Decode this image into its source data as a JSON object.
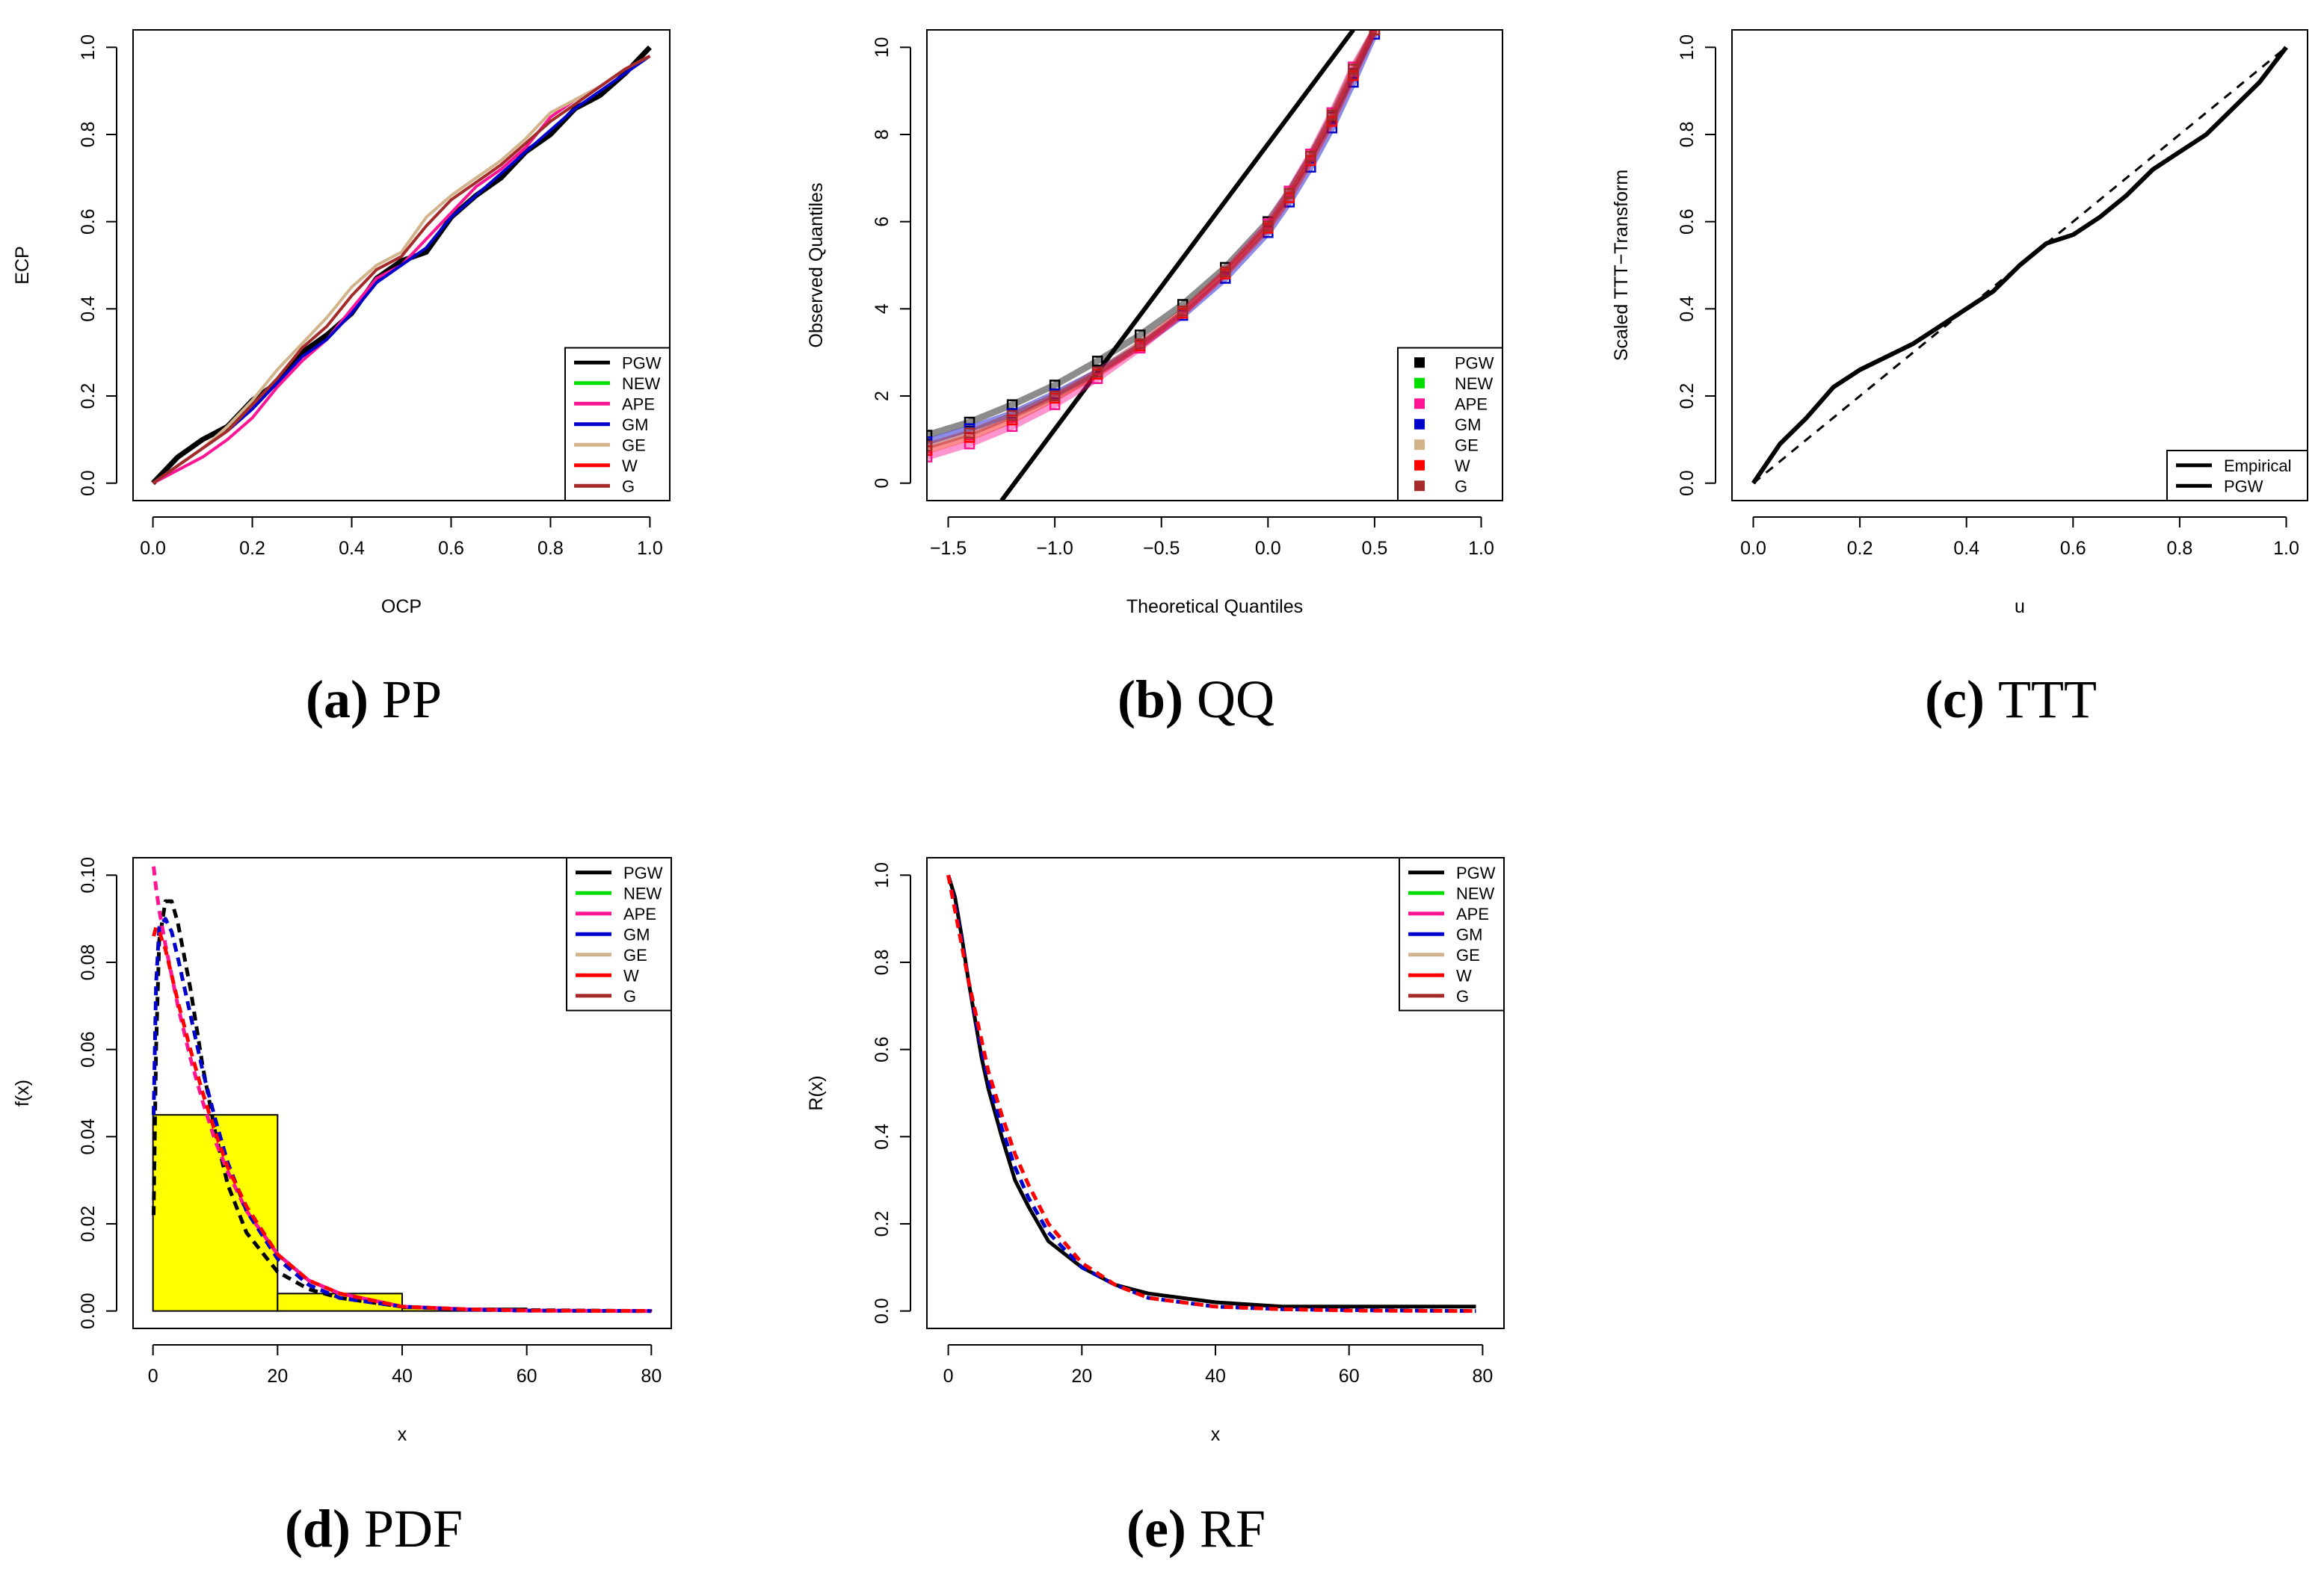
{
  "colors": {
    "PGW": "#000000",
    "NEW": "#00dd00",
    "APE": "#ff1493",
    "GM": "#0000cd",
    "GE": "#d2b48c",
    "W": "#ff0000",
    "G": "#a52a2a",
    "histogram_fill": "#ffff00"
  },
  "chart_data": [
    {
      "id": "pp",
      "type": "line",
      "caption": {
        "letter": "(a)",
        "text": "PP"
      },
      "xlabel": "OCP",
      "ylabel": "ECP",
      "xlim": [
        0,
        1
      ],
      "ylim": [
        0,
        1
      ],
      "xticks": [
        "0.0",
        "0.2",
        "0.4",
        "0.6",
        "0.8",
        "1.0"
      ],
      "yticks": [
        "0.0",
        "0.2",
        "0.4",
        "0.6",
        "0.8",
        "1.0"
      ],
      "legend": {
        "position": "bottom-right",
        "entries": [
          "PGW",
          "NEW",
          "APE",
          "GM",
          "GE",
          "W",
          "G"
        ],
        "style": "line"
      },
      "x": [
        0.0,
        0.05,
        0.1,
        0.15,
        0.2,
        0.25,
        0.3,
        0.35,
        0.4,
        0.45,
        0.5,
        0.55,
        0.6,
        0.65,
        0.7,
        0.75,
        0.8,
        0.85,
        0.9,
        0.95,
        1.0
      ],
      "series": [
        {
          "name": "PGW",
          "values": [
            0.0,
            0.06,
            0.1,
            0.13,
            0.19,
            0.23,
            0.3,
            0.34,
            0.39,
            0.47,
            0.51,
            0.53,
            0.61,
            0.66,
            0.7,
            0.76,
            0.8,
            0.86,
            0.89,
            0.94,
            1.0
          ]
        },
        {
          "name": "APE",
          "values": [
            0.0,
            0.03,
            0.06,
            0.1,
            0.15,
            0.22,
            0.28,
            0.33,
            0.4,
            0.47,
            0.5,
            0.56,
            0.62,
            0.68,
            0.72,
            0.77,
            0.84,
            0.88,
            0.91,
            0.95,
            0.98
          ]
        },
        {
          "name": "GM",
          "values": [
            0.0,
            0.04,
            0.08,
            0.12,
            0.17,
            0.23,
            0.29,
            0.33,
            0.39,
            0.46,
            0.5,
            0.54,
            0.61,
            0.66,
            0.71,
            0.76,
            0.81,
            0.86,
            0.9,
            0.94,
            0.98
          ]
        },
        {
          "name": "GE",
          "values": [
            0.0,
            0.04,
            0.08,
            0.13,
            0.19,
            0.26,
            0.32,
            0.38,
            0.45,
            0.5,
            0.53,
            0.61,
            0.66,
            0.7,
            0.74,
            0.79,
            0.85,
            0.88,
            0.91,
            0.95,
            0.98
          ]
        },
        {
          "name": "G",
          "values": [
            0.0,
            0.04,
            0.08,
            0.12,
            0.18,
            0.24,
            0.31,
            0.36,
            0.43,
            0.49,
            0.52,
            0.59,
            0.65,
            0.69,
            0.73,
            0.78,
            0.83,
            0.87,
            0.91,
            0.95,
            0.98
          ]
        }
      ]
    },
    {
      "id": "qq",
      "type": "scatter",
      "caption": {
        "letter": "(b)",
        "text": "QQ"
      },
      "xlabel": "Theoretical Quantiles",
      "ylabel": "Observed Quantiles",
      "xlim": [
        -1.6,
        1.1
      ],
      "ylim": [
        -0.4,
        10.4
      ],
      "xticks": [
        -1.5,
        -1.0,
        -0.5,
        0.0,
        0.5,
        1.0
      ],
      "xtick_labels": [
        "−1.5",
        "−1.0",
        "−0.5",
        "0.0",
        "0.5",
        "1.0"
      ],
      "yticks": [
        0,
        2,
        4,
        6,
        8,
        10
      ],
      "ytick_labels": [
        "0",
        "2",
        "4",
        "6",
        "8",
        "10"
      ],
      "legend": {
        "position": "bottom-right",
        "entries": [
          "PGW",
          "NEW",
          "APE",
          "GM",
          "GE",
          "W",
          "G"
        ],
        "style": "square"
      },
      "reference_line": {
        "x": [
          -1.25,
          0.4
        ],
        "y": [
          -0.4,
          10.4
        ]
      },
      "x": [
        -1.6,
        -1.4,
        -1.2,
        -1.0,
        -0.8,
        -0.6,
        -0.4,
        -0.2,
        0.0,
        0.1,
        0.2,
        0.3,
        0.4,
        0.5
      ],
      "series": [
        {
          "name": "PGW",
          "values": [
            1.1,
            1.4,
            1.8,
            2.25,
            2.8,
            3.4,
            4.1,
            4.95,
            6.0,
            6.7,
            7.5,
            8.4,
            9.4,
            10.4
          ]
        },
        {
          "name": "GM",
          "values": [
            0.95,
            1.25,
            1.6,
            2.05,
            2.55,
            3.15,
            3.85,
            4.7,
            5.75,
            6.45,
            7.25,
            8.15,
            9.2,
            10.3
          ]
        },
        {
          "name": "APE",
          "values": [
            0.6,
            0.9,
            1.3,
            1.8,
            2.4,
            3.1,
            3.9,
            4.85,
            5.95,
            6.7,
            7.55,
            8.5,
            9.55,
            10.4
          ]
        },
        {
          "name": "W",
          "values": [
            0.75,
            1.05,
            1.45,
            1.95,
            2.5,
            3.15,
            3.9,
            4.8,
            5.85,
            6.55,
            7.4,
            8.3,
            9.35,
            10.4
          ]
        },
        {
          "name": "G",
          "values": [
            0.85,
            1.15,
            1.55,
            2.0,
            2.55,
            3.2,
            3.95,
            4.85,
            5.9,
            6.65,
            7.5,
            8.45,
            9.5,
            10.4
          ]
        }
      ]
    },
    {
      "id": "ttt",
      "type": "line",
      "caption": {
        "letter": "(c)",
        "text": "TTT"
      },
      "xlabel": "u",
      "ylabel": "Scaled TTT−Transform",
      "xlim": [
        0,
        1
      ],
      "ylim": [
        0,
        1
      ],
      "xticks": [
        "0.0",
        "0.2",
        "0.4",
        "0.6",
        "0.8",
        "1.0"
      ],
      "yticks": [
        "0.0",
        "0.2",
        "0.4",
        "0.6",
        "0.8",
        "1.0"
      ],
      "legend": {
        "position": "bottom-right",
        "entries": [
          "Empirical",
          "PGW"
        ],
        "style": "line"
      },
      "x": [
        0.0,
        0.05,
        0.1,
        0.15,
        0.2,
        0.25,
        0.3,
        0.35,
        0.4,
        0.45,
        0.5,
        0.55,
        0.6,
        0.65,
        0.7,
        0.75,
        0.8,
        0.85,
        0.9,
        0.95,
        1.0
      ],
      "series": [
        {
          "name": "PGW",
          "values": [
            0.0,
            0.09,
            0.15,
            0.22,
            0.26,
            0.29,
            0.32,
            0.36,
            0.4,
            0.44,
            0.5,
            0.55,
            0.57,
            0.61,
            0.66,
            0.72,
            0.76,
            0.8,
            0.86,
            0.92,
            1.0
          ]
        },
        {
          "name": "diagonal",
          "values": [
            0.0,
            0.05,
            0.1,
            0.15,
            0.2,
            0.25,
            0.3,
            0.35,
            0.4,
            0.45,
            0.5,
            0.55,
            0.6,
            0.65,
            0.7,
            0.75,
            0.8,
            0.85,
            0.9,
            0.95,
            1.0
          ]
        }
      ]
    },
    {
      "id": "pdf",
      "type": "line",
      "caption": {
        "letter": "(d)",
        "text": "PDF"
      },
      "xlabel": "x",
      "ylabel": "f(x)",
      "xlim": [
        0,
        80
      ],
      "ylim": [
        0,
        0.1
      ],
      "xticks": [
        0,
        20,
        40,
        60,
        80
      ],
      "xtick_labels": [
        "0",
        "20",
        "40",
        "60",
        "80"
      ],
      "yticks": [
        0.0,
        0.02,
        0.04,
        0.06,
        0.08,
        0.1
      ],
      "ytick_labels": [
        "0.00",
        "0.02",
        "0.04",
        "0.06",
        "0.08",
        "0.10"
      ],
      "legend": {
        "position": "top-right",
        "entries": [
          "PGW",
          "NEW",
          "APE",
          "GM",
          "GE",
          "W",
          "G"
        ],
        "style": "line"
      },
      "histogram": {
        "bins": [
          [
            0,
            20
          ],
          [
            20,
            40
          ],
          [
            40,
            60
          ],
          [
            60,
            80
          ]
        ],
        "density": [
          0.045,
          0.004,
          0.0006,
          0.0002
        ]
      },
      "x": [
        0.1,
        0.5,
        1,
        2,
        3,
        4,
        6,
        8,
        10,
        12,
        15,
        20,
        25,
        30,
        40,
        50,
        60,
        80
      ],
      "series": [
        {
          "name": "PGW",
          "values": [
            0.022,
            0.06,
            0.085,
            0.094,
            0.094,
            0.089,
            0.074,
            0.056,
            0.041,
            0.029,
            0.018,
            0.009,
            0.005,
            0.003,
            0.001,
            0.0004,
            0.0002,
            0.0
          ]
        },
        {
          "name": "APE",
          "values": [
            0.102,
            0.097,
            0.092,
            0.084,
            0.077,
            0.07,
            0.058,
            0.048,
            0.039,
            0.032,
            0.023,
            0.013,
            0.007,
            0.004,
            0.001,
            0.0004,
            0.0001,
            0.0
          ]
        },
        {
          "name": "GM",
          "values": [
            0.045,
            0.075,
            0.088,
            0.09,
            0.087,
            0.081,
            0.068,
            0.055,
            0.044,
            0.034,
            0.023,
            0.012,
            0.006,
            0.003,
            0.001,
            0.0003,
            0.0001,
            0.0
          ]
        },
        {
          "name": "W",
          "values": [
            0.086,
            0.088,
            0.087,
            0.083,
            0.077,
            0.071,
            0.06,
            0.05,
            0.041,
            0.033,
            0.024,
            0.013,
            0.007,
            0.004,
            0.001,
            0.0004,
            0.0001,
            0.0
          ]
        }
      ]
    },
    {
      "id": "rf",
      "type": "line",
      "caption": {
        "letter": "(e)",
        "text": "RF"
      },
      "xlabel": "x",
      "ylabel": "R(x)",
      "xlim": [
        0,
        80
      ],
      "ylim": [
        0,
        1
      ],
      "xticks": [
        0,
        20,
        40,
        60,
        80
      ],
      "xtick_labels": [
        "0",
        "20",
        "40",
        "60",
        "80"
      ],
      "yticks": [
        0.0,
        0.2,
        0.4,
        0.6,
        0.8,
        1.0
      ],
      "ytick_labels": [
        "0.0",
        "0.2",
        "0.4",
        "0.6",
        "0.8",
        "1.0"
      ],
      "legend": {
        "position": "top-right",
        "entries": [
          "PGW",
          "NEW",
          "APE",
          "GM",
          "GE",
          "W",
          "G"
        ],
        "style": "line"
      },
      "x": [
        0,
        1,
        2,
        3,
        4,
        5,
        6,
        8,
        10,
        12,
        15,
        20,
        25,
        30,
        40,
        50,
        60,
        79
      ],
      "series": [
        {
          "name": "PGW",
          "values": [
            1.0,
            0.95,
            0.86,
            0.76,
            0.67,
            0.58,
            0.51,
            0.4,
            0.3,
            0.24,
            0.16,
            0.1,
            0.06,
            0.04,
            0.02,
            0.01,
            0.01,
            0.01
          ]
        },
        {
          "name": "GM",
          "values": [
            1.0,
            0.93,
            0.85,
            0.76,
            0.68,
            0.6,
            0.53,
            0.42,
            0.33,
            0.26,
            0.18,
            0.1,
            0.06,
            0.03,
            0.01,
            0.004,
            0.002,
            0.0
          ]
        },
        {
          "name": "W",
          "values": [
            1.0,
            0.92,
            0.84,
            0.76,
            0.69,
            0.62,
            0.55,
            0.45,
            0.36,
            0.29,
            0.2,
            0.11,
            0.06,
            0.03,
            0.01,
            0.004,
            0.001,
            0.0
          ]
        }
      ]
    }
  ]
}
